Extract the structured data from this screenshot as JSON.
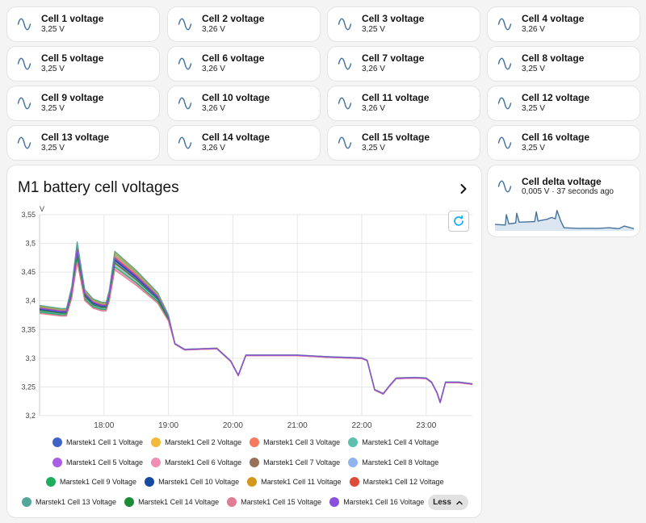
{
  "tiles": [
    {
      "name": "Cell 1 voltage",
      "state": "3,25 V"
    },
    {
      "name": "Cell 2 voltage",
      "state": "3,26 V"
    },
    {
      "name": "Cell 3 voltage",
      "state": "3,25 V"
    },
    {
      "name": "Cell 4 voltage",
      "state": "3,26 V"
    },
    {
      "name": "Cell 5 voltage",
      "state": "3,25 V"
    },
    {
      "name": "Cell 6 voltage",
      "state": "3,26 V"
    },
    {
      "name": "Cell 7 voltage",
      "state": "3,26 V"
    },
    {
      "name": "Cell 8 voltage",
      "state": "3,25 V"
    },
    {
      "name": "Cell 9 voltage",
      "state": "3,25 V"
    },
    {
      "name": "Cell 10 voltage",
      "state": "3,26 V"
    },
    {
      "name": "Cell 11 voltage",
      "state": "3,26 V"
    },
    {
      "name": "Cell 12 voltage",
      "state": "3,25 V"
    },
    {
      "name": "Cell 13 voltage",
      "state": "3,25 V"
    },
    {
      "name": "Cell 14 voltage",
      "state": "3,26 V"
    },
    {
      "name": "Cell 15 voltage",
      "state": "3,25 V"
    },
    {
      "name": "Cell 16 voltage",
      "state": "3,25 V"
    }
  ],
  "tile_icon": "sine-wave-icon",
  "delta_card": {
    "name": "Cell delta voltage",
    "state": "0,005 V · 37 seconds ago",
    "icon": "sine-wave-icon"
  },
  "chart_card": {
    "title": "M1 battery cell voltages",
    "more_icon": "chevron-right-icon",
    "reset_icon": "reset-zoom-icon",
    "less_label": "Less",
    "less_icon": "chevron-up-icon"
  },
  "colors": {
    "accent": "#03a9f4",
    "icon": "#44739e",
    "grid": "#e6e6e6"
  },
  "chart_data": {
    "type": "line",
    "ylabel": "V",
    "ylim": [
      3.2,
      3.55
    ],
    "yticks": [
      "3,2",
      "3,25",
      "3,3",
      "3,35",
      "3,4",
      "3,45",
      "3,5",
      "3,55"
    ],
    "ytick_values": [
      3.2,
      3.25,
      3.3,
      3.35,
      3.4,
      3.45,
      3.5,
      3.55
    ],
    "xlim": [
      "17:00",
      "23:43"
    ],
    "xticks": [
      "18:00",
      "19:00",
      "20:00",
      "21:00",
      "22:00",
      "23:00"
    ],
    "grid": true,
    "legend_placement": "bottom",
    "base_curve": {
      "x": [
        "17:00",
        "17:20",
        "17:25",
        "17:30",
        "17:35",
        "17:42",
        "17:50",
        "17:58",
        "18:02",
        "18:05",
        "18:10",
        "18:30",
        "18:50",
        "19:00",
        "19:06",
        "19:15",
        "19:30",
        "19:45",
        "19:58",
        "20:05",
        "20:12",
        "20:30",
        "21:00",
        "21:30",
        "22:00",
        "22:05",
        "22:12",
        "22:20",
        "22:25",
        "22:32",
        "22:50",
        "23:00",
        "23:05",
        "23:10",
        "23:13",
        "23:18",
        "23:30",
        "23:43"
      ],
      "y": [
        3.385,
        3.38,
        3.38,
        3.415,
        3.485,
        3.41,
        3.395,
        3.39,
        3.39,
        3.41,
        3.47,
        3.44,
        3.405,
        3.37,
        3.325,
        3.315,
        3.316,
        3.317,
        3.295,
        3.27,
        3.305,
        3.305,
        3.305,
        3.302,
        3.3,
        3.296,
        3.245,
        3.238,
        3.25,
        3.265,
        3.266,
        3.265,
        3.258,
        3.24,
        3.223,
        3.258,
        3.258,
        3.255
      ]
    },
    "series": [
      {
        "name": "Marstek1 Cell 1 Voltage",
        "color": "#4064c6",
        "offset": 0.0,
        "spread": 0.0
      },
      {
        "name": "Marstek1 Cell 2 Voltage",
        "color": "#f2b93b",
        "offset": 0.0,
        "spread": -0.4
      },
      {
        "name": "Marstek1 Cell 3 Voltage",
        "color": "#f37a5e",
        "offset": 0.0,
        "spread": 0.6
      },
      {
        "name": "Marstek1 Cell 4 Voltage",
        "color": "#5fbfae",
        "offset": 0.0,
        "spread": 0.8
      },
      {
        "name": "Marstek1 Cell 5 Voltage",
        "color": "#a95ee3",
        "offset": 0.0,
        "spread": -0.2
      },
      {
        "name": "Marstek1 Cell 6 Voltage",
        "color": "#ef8fb4",
        "offset": 0.0,
        "spread": -1.0
      },
      {
        "name": "Marstek1 Cell 7 Voltage",
        "color": "#987258",
        "offset": 0.0,
        "spread": 0.2
      },
      {
        "name": "Marstek1 Cell 8 Voltage",
        "color": "#92b4ee",
        "offset": 0.0,
        "spread": -0.6
      },
      {
        "name": "Marstek1 Cell 9 Voltage",
        "color": "#1fae5b",
        "offset": 0.0,
        "spread": -0.8
      },
      {
        "name": "Marstek1 Cell 10 Voltage",
        "color": "#1649a0",
        "offset": 0.0,
        "spread": 0.1
      },
      {
        "name": "Marstek1 Cell 11 Voltage",
        "color": "#d4991c",
        "offset": 0.0,
        "spread": 1.0
      },
      {
        "name": "Marstek1 Cell 12 Voltage",
        "color": "#dd4b3a",
        "offset": 0.0,
        "spread": 0.4
      },
      {
        "name": "Marstek1 Cell 13 Voltage",
        "color": "#53a799",
        "offset": 0.0,
        "spread": 1.2
      },
      {
        "name": "Marstek1 Cell 14 Voltage",
        "color": "#1a8c38",
        "offset": 0.0,
        "spread": -0.3
      },
      {
        "name": "Marstek1 Cell 15 Voltage",
        "color": "#e07b95",
        "offset": 0.0,
        "spread": -1.2
      },
      {
        "name": "Marstek1 Cell 16 Voltage",
        "color": "#8a4fdc",
        "offset": 0.0,
        "spread": 0.3
      }
    ]
  },
  "delta_sparkline": {
    "x": [
      "17:00",
      "17:30",
      "17:33",
      "17:40",
      "18:00",
      "18:03",
      "18:10",
      "18:55",
      "19:00",
      "19:05",
      "19:15",
      "19:30",
      "19:45",
      "19:55",
      "20:00",
      "20:10",
      "20:20",
      "21:00",
      "22:00",
      "22:30",
      "23:00",
      "23:15",
      "23:43"
    ],
    "y": [
      0.02,
      0.018,
      0.055,
      0.022,
      0.025,
      0.06,
      0.028,
      0.03,
      0.065,
      0.032,
      0.035,
      0.038,
      0.045,
      0.04,
      0.07,
      0.035,
      0.008,
      0.006,
      0.006,
      0.008,
      0.005,
      0.014,
      0.005
    ]
  }
}
